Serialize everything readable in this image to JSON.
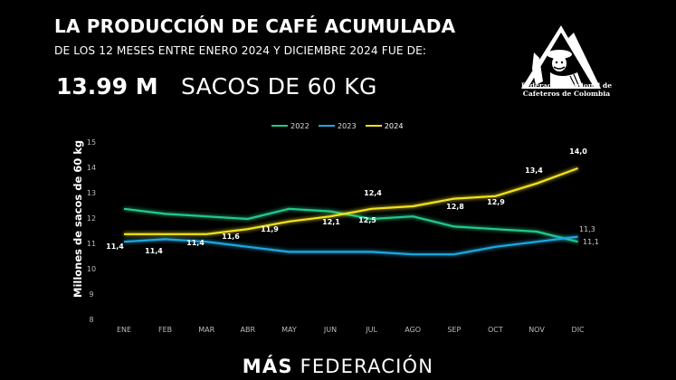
{
  "header": {
    "title": "LA PRODUCCIÓN DE CAFÉ ACUMULADA",
    "subtitle": "DE LOS 12 MESES ENTRE ENERO 2024 Y DICIEMBRE 2024 FUE DE:",
    "value": "13.99 M",
    "unit": "SACOS DE 60 KG"
  },
  "logo": {
    "icon": "fnc-mountain-farmer-mule-logo",
    "line1": "Federación Nacional de",
    "line2": "Cafeteros de Colombia"
  },
  "footer": {
    "bold": "MÁS",
    "regular": "FEDERACIÓN"
  },
  "colors": {
    "background": "#000000",
    "series_2022": "#22c98a",
    "series_2023": "#1ea8e0",
    "series_2024": "#f2e21c"
  },
  "chart_data": {
    "type": "line",
    "title": "",
    "xlabel": "",
    "ylabel": "Millones de sacos de 60 kg",
    "ylim": [
      8,
      15
    ],
    "yticks": [
      "15",
      "14",
      "13",
      "12",
      "11",
      "10",
      "9",
      "8"
    ],
    "grid": false,
    "legend_position": "top",
    "categories": [
      "ENE",
      "FEB",
      "MAR",
      "ABR",
      "MAY",
      "JUN",
      "JUL",
      "AGO",
      "SEP",
      "OCT",
      "NOV",
      "DIC"
    ],
    "series": [
      {
        "name": "2022",
        "color": "#22c98a",
        "values": [
          12.4,
          12.2,
          12.1,
          12.0,
          12.4,
          12.3,
          12.0,
          12.1,
          11.7,
          11.6,
          11.5,
          11.1
        ]
      },
      {
        "name": "2023",
        "color": "#1ea8e0",
        "values": [
          11.1,
          11.2,
          11.1,
          10.9,
          10.7,
          10.7,
          10.7,
          10.6,
          10.6,
          10.9,
          11.1,
          11.3
        ]
      },
      {
        "name": "2024",
        "color": "#f2e21c",
        "values": [
          11.4,
          11.4,
          11.4,
          11.6,
          11.9,
          12.1,
          12.4,
          12.5,
          12.8,
          12.9,
          13.4,
          14.0
        ]
      }
    ],
    "data_labels_2024": [
      "11,4",
      "11,4",
      "11,4",
      "11,6",
      "11,9",
      "12,1",
      "12,4",
      "12,5",
      "12,8",
      "12,9",
      "13,4",
      "14,0"
    ],
    "end_labels": {
      "2023": "11,3",
      "2022": "11,1"
    }
  }
}
